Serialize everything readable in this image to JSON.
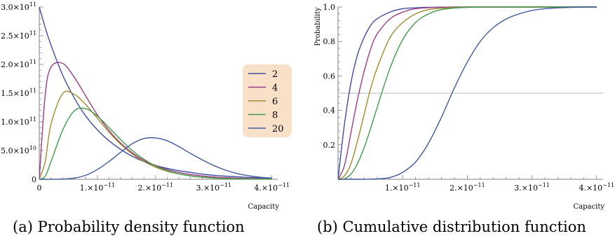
{
  "captions": {
    "left": "(a) Probability density function",
    "right": "(b) Cumulative distribution function"
  },
  "legend": {
    "labels": [
      "2",
      "4",
      "6",
      "8",
      "20"
    ],
    "background": "#f9e0c8"
  },
  "series_colors": [
    "#3f4da3",
    "#9a3d86",
    "#a38a2d",
    "#3f9c49",
    "#3f5c9f"
  ],
  "reference_line_color": "#b5b5b5",
  "chart_data": [
    {
      "type": "line",
      "name": "pdf",
      "caption": "(a) Probability density function",
      "xlabel": "Capacity",
      "ylabel": "",
      "xlim": [
        0,
        4.1e-11
      ],
      "ylim": [
        0,
        300000000000.0
      ],
      "x_ticks": [
        {
          "value": 0,
          "base": "0",
          "exp": ""
        },
        {
          "value": 1e-11,
          "base": "1.×10",
          "exp": "−11"
        },
        {
          "value": 2e-11,
          "base": "2.×10",
          "exp": "−11"
        },
        {
          "value": 3e-11,
          "base": "3.×10",
          "exp": "−11"
        },
        {
          "value": 4e-11,
          "base": "4.×10",
          "exp": "−11"
        }
      ],
      "y_ticks": [
        {
          "value": 0,
          "base": "0",
          "exp": ""
        },
        {
          "value": 50000000000.0,
          "base": "5.0×10",
          "exp": "10"
        },
        {
          "value": 100000000000.0,
          "base": "1.0×10",
          "exp": "11"
        },
        {
          "value": 150000000000.0,
          "base": "1.5×10",
          "exp": "11"
        },
        {
          "value": 200000000000.0,
          "base": "2.0×10",
          "exp": "11"
        },
        {
          "value": 250000000000.0,
          "base": "2.5×10",
          "exp": "11"
        },
        {
          "value": 300000000000.0,
          "base": "3.0×10",
          "exp": "11"
        }
      ],
      "x": [
        0,
        1e-12,
        2e-12,
        4e-12,
        6e-12,
        8e-12,
        1e-11,
        1.2e-11,
        1.4e-11,
        1.6e-11,
        1.8e-11,
        2e-11,
        2.2e-11,
        2.4e-11,
        2.6e-11,
        2.8e-11,
        3e-11,
        3.2e-11,
        3.4e-11,
        3.6e-11,
        3.8e-11,
        4e-11
      ],
      "series": [
        {
          "name": "2",
          "values": [
            300000000000.0,
            265000000000.0,
            234000000000.0,
            182000000000.0,
            142000000000.0,
            110000000000.0,
            86000000000.0,
            67000000000.0,
            52000000000.0,
            40000000000.0,
            31000000000.0,
            24000000000.0,
            19000000000.0,
            15000000000.0,
            12000000000.0,
            9000000000.0,
            7000000000.0,
            5500000000.0,
            4300000000.0,
            3300000000.0,
            2600000000.0,
            2000000000.0
          ]
        },
        {
          "name": "4",
          "values": [
            0,
            145000000000.0,
            195000000000.0,
            202000000000.0,
            178000000000.0,
            145000000000.0,
            112000000000.0,
            85000000000.0,
            63000000000.0,
            46000000000.0,
            33000000000.0,
            24000000000.0,
            17000000000.0,
            12000000000.0,
            8400000000.0,
            5900000000.0,
            4100000000.0,
            2900000000.0,
            2000000000.0,
            1400000000.0,
            960000000.0,
            660000000.0
          ]
        },
        {
          "name": "6",
          "values": [
            0,
            30000000000.0,
            95000000000.0,
            149000000000.0,
            148000000000.0,
            130000000000.0,
            106000000000.0,
            82000000000.0,
            61000000000.0,
            44000000000.0,
            31000000000.0,
            21000000000.0,
            14000000000.0,
            9300000000.0,
            6100000000.0,
            3900000000.0,
            2500000000.0,
            1600000000.0,
            1000000000.0,
            630000000.0,
            390000000.0,
            240000000.0
          ]
        },
        {
          "name": "8",
          "values": [
            0,
            5000000000.0,
            30000000000.0,
            85000000000.0,
            119000000000.0,
            123000000000.0,
            110000000000.0,
            90000000000.0,
            69000000000.0,
            50000000000.0,
            35000000000.0,
            23000000000.0,
            15000000000.0,
            9500000000.0,
            5800000000.0,
            3500000000.0,
            2100000000.0,
            1200000000.0,
            700000000.0,
            400000000.0,
            220000000.0,
            120000000.0
          ]
        },
        {
          "name": "20",
          "values": [
            0,
            0,
            0,
            300000000.0,
            2000000000.0,
            7000000000.0,
            17000000000.0,
            31000000000.0,
            47000000000.0,
            62000000000.0,
            71000000000.0,
            72000000000.0,
            67000000000.0,
            57000000000.0,
            45000000000.0,
            34000000000.0,
            24000000000.0,
            16000000000.0,
            10000000000.0,
            6200000000.0,
            3600000000.0,
            2000000000.0
          ]
        }
      ],
      "legend_position": "right",
      "grid": false
    },
    {
      "type": "line",
      "name": "cdf",
      "caption": "(b) Cumulative distribution function",
      "xlabel": "Capacity",
      "ylabel": "Probability",
      "xlim": [
        0,
        4.1e-11
      ],
      "ylim": [
        0,
        1.0
      ],
      "x_ticks": [
        {
          "value": 1e-11,
          "base": "1.×10",
          "exp": "−11"
        },
        {
          "value": 2e-11,
          "base": "2.×10",
          "exp": "−11"
        },
        {
          "value": 3e-11,
          "base": "3.×10",
          "exp": "−11"
        },
        {
          "value": 4e-11,
          "base": "4.×10",
          "exp": "−11"
        }
      ],
      "y_ticks": [
        {
          "value": 0.2,
          "base": "0.2",
          "exp": ""
        },
        {
          "value": 0.4,
          "base": "0.4",
          "exp": ""
        },
        {
          "value": 0.6,
          "base": "0.6",
          "exp": ""
        },
        {
          "value": 0.8,
          "base": "0.8",
          "exp": ""
        },
        {
          "value": 1.0,
          "base": "1.0",
          "exp": ""
        }
      ],
      "reference_line": 0.5,
      "x": [
        0,
        1e-12,
        2e-12,
        3e-12,
        4e-12,
        5e-12,
        6e-12,
        8e-12,
        1e-11,
        1.2e-11,
        1.4e-11,
        1.6e-11,
        1.8e-11,
        2e-11,
        2.2e-11,
        2.4e-11,
        2.6e-11,
        2.8e-11,
        3e-11,
        3.2e-11,
        3.4e-11,
        3.6e-11,
        3.8e-11,
        4e-11
      ],
      "series": [
        {
          "name": "2",
          "values": [
            0,
            0.32,
            0.56,
            0.72,
            0.82,
            0.89,
            0.93,
            0.97,
            0.99,
            0.995,
            0.998,
            0.999,
            1.0,
            1.0,
            1.0,
            1.0,
            1.0,
            1.0,
            1.0,
            1.0,
            1.0,
            1.0,
            1.0,
            1.0
          ]
        },
        {
          "name": "4",
          "values": [
            0,
            0.08,
            0.27,
            0.46,
            0.62,
            0.75,
            0.84,
            0.93,
            0.97,
            0.99,
            0.996,
            0.998,
            0.999,
            1.0,
            1.0,
            1.0,
            1.0,
            1.0,
            1.0,
            1.0,
            1.0,
            1.0,
            1.0,
            1.0
          ]
        },
        {
          "name": "6",
          "values": [
            0,
            0.02,
            0.09,
            0.22,
            0.37,
            0.52,
            0.64,
            0.82,
            0.91,
            0.96,
            0.985,
            0.993,
            0.997,
            0.999,
            1.0,
            1.0,
            1.0,
            1.0,
            1.0,
            1.0,
            1.0,
            1.0,
            1.0,
            1.0
          ]
        },
        {
          "name": "8",
          "values": [
            0,
            0.003,
            0.03,
            0.09,
            0.18,
            0.29,
            0.41,
            0.64,
            0.81,
            0.91,
            0.96,
            0.985,
            0.994,
            0.998,
            0.999,
            1.0,
            1.0,
            1.0,
            1.0,
            1.0,
            1.0,
            1.0,
            1.0,
            1.0
          ]
        },
        {
          "name": "20",
          "values": [
            0,
            0,
            0,
            0,
            0,
            0.001,
            0.002,
            0.01,
            0.04,
            0.1,
            0.21,
            0.36,
            0.53,
            0.68,
            0.8,
            0.88,
            0.93,
            0.96,
            0.98,
            0.99,
            0.995,
            0.998,
            0.999,
            1.0
          ]
        }
      ],
      "grid": false
    }
  ]
}
